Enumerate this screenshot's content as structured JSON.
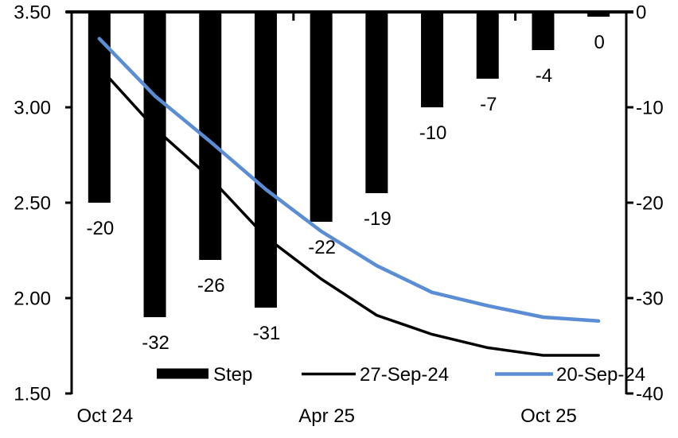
{
  "chart_data": {
    "type": "combo-bar-line",
    "n_categories": 10,
    "background": "#FFFFFF",
    "grid": false,
    "legend_position": "bottom-inside",
    "x_axis": {
      "labels": [
        "Oct 24",
        "Apr 25",
        "Oct 25"
      ],
      "label_slots": [
        0,
        4,
        8
      ],
      "boundary_tick_slots": [
        4,
        8
      ]
    },
    "left_axis": {
      "min": 1.5,
      "max": 3.5,
      "tick_labels": [
        "3.50",
        "3.00",
        "2.50",
        "2.00",
        "1.50"
      ],
      "tick_values": [
        3.5,
        3.0,
        2.5,
        2.0,
        1.5
      ]
    },
    "right_axis": {
      "min": -40,
      "max": 0,
      "tick_labels": [
        "0",
        "-10",
        "-20",
        "-30",
        "-40"
      ],
      "tick_values": [
        0,
        -10,
        -20,
        -30,
        -40
      ]
    },
    "series": [
      {
        "name": "Step",
        "kind": "bar",
        "axis": "right",
        "color": "#000000",
        "values": [
          -20,
          -32,
          -26,
          -31,
          -22,
          -19,
          -10,
          -7,
          -4,
          0
        ],
        "labels": [
          "-20",
          "-32",
          "-26",
          "-31",
          "-22",
          "-19",
          "-10",
          "-7",
          "-4",
          "0"
        ]
      },
      {
        "name": "27-Sep-24",
        "kind": "line",
        "axis": "left",
        "color": "#000000",
        "values": [
          3.21,
          2.89,
          2.63,
          2.32,
          2.1,
          1.91,
          1.81,
          1.74,
          1.7,
          1.7
        ]
      },
      {
        "name": "20-Sep-24",
        "kind": "line",
        "axis": "left",
        "color": "#5B8DD5",
        "values": [
          3.36,
          3.06,
          2.82,
          2.57,
          2.35,
          2.17,
          2.03,
          1.96,
          1.9,
          1.88
        ]
      }
    ]
  }
}
